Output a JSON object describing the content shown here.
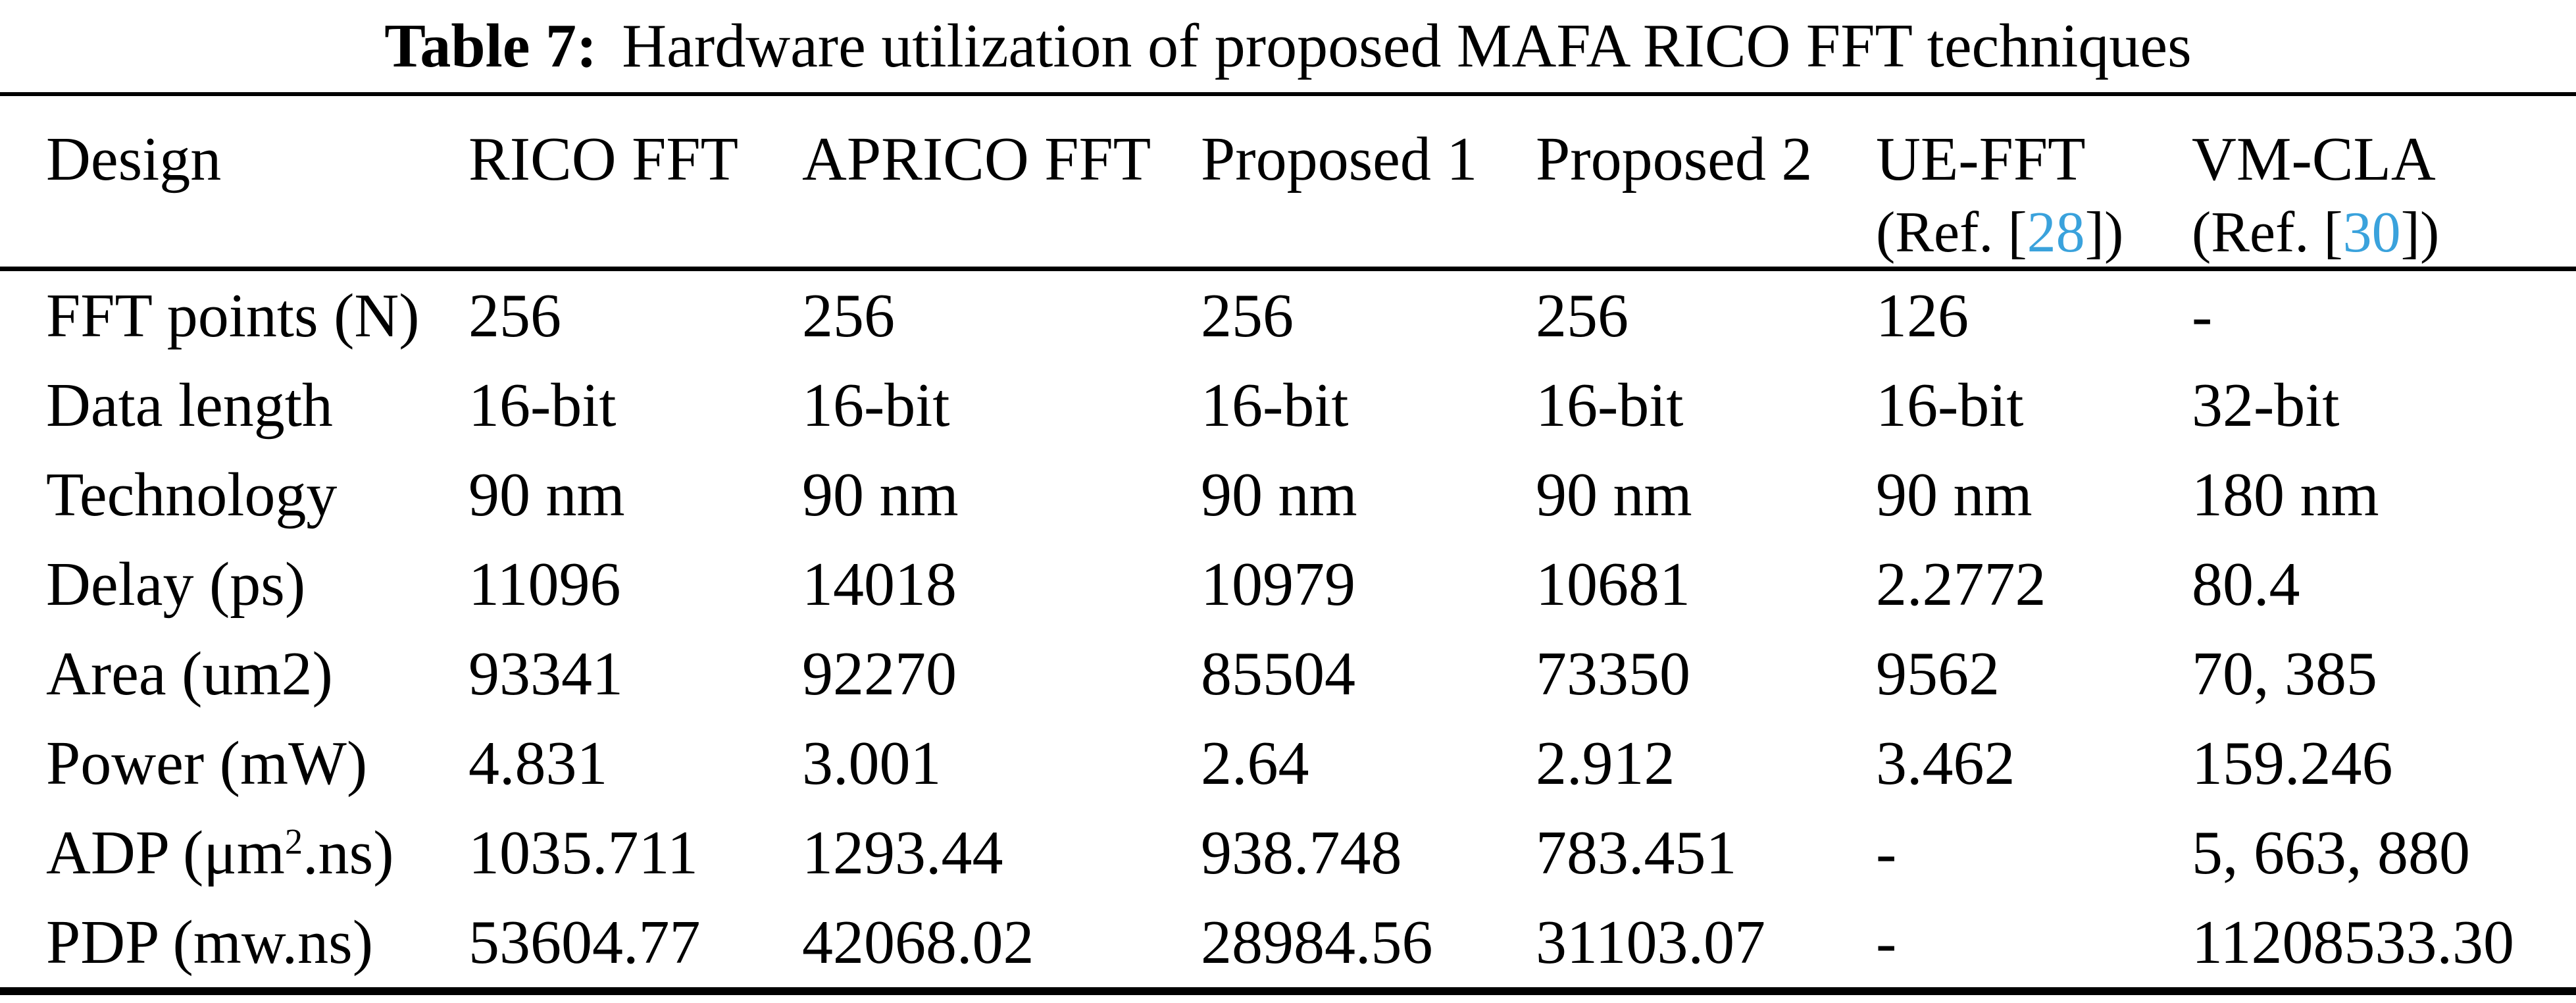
{
  "caption": {
    "label": "Table 7:",
    "text": "Hardware utilization of proposed MAFA RICO FFT techniques"
  },
  "colors": {
    "citation": "#3aa2dc",
    "text": "#000000",
    "background": "#ffffff"
  },
  "table": {
    "header": {
      "design": "Design",
      "columns": [
        {
          "line1": "RICO FFT"
        },
        {
          "line1": "APRICO FFT"
        },
        {
          "line1": "Proposed 1"
        },
        {
          "line1": "Proposed 2"
        },
        {
          "line1": "UE-FFT",
          "ref_pre": "(Ref. [",
          "ref_num": "28",
          "ref_post": "])"
        },
        {
          "line1": "VM-CLA",
          "ref_pre": "(Ref. [",
          "ref_num": "30",
          "ref_post": "])"
        }
      ]
    },
    "rows": [
      {
        "label_pre": "FFT points (N)",
        "values": [
          "256",
          "256",
          "256",
          "256",
          "126",
          "-"
        ]
      },
      {
        "label_pre": "Data length",
        "values": [
          "16-bit",
          "16-bit",
          "16-bit",
          "16-bit",
          "16-bit",
          "32-bit"
        ]
      },
      {
        "label_pre": "Technology",
        "values": [
          "90 nm",
          "90 nm",
          "90 nm",
          "90 nm",
          "90 nm",
          "180 nm"
        ]
      },
      {
        "label_pre": "Delay (ps)",
        "values": [
          "11096",
          "14018",
          "10979",
          "10681",
          "2.2772",
          "80.4"
        ]
      },
      {
        "label_pre": "Area (um2)",
        "values": [
          "93341",
          "92270",
          "85504",
          "73350",
          "9562",
          "70, 385"
        ]
      },
      {
        "label_pre": "Power (mW)",
        "values": [
          "4.831",
          "3.001",
          "2.64",
          "2.912",
          "3.462",
          "159.246"
        ]
      },
      {
        "label_pre": "ADP (μm",
        "label_sup": "2",
        "label_post": ".ns)",
        "values": [
          "1035.711",
          "1293.44",
          "938.748",
          "783.451",
          "-",
          "5, 663, 880"
        ]
      },
      {
        "label_pre": "PDP (mw.ns)",
        "values": [
          "53604.77",
          "42068.02",
          "28984.56",
          "31103.07",
          "-",
          "11208533.30"
        ]
      }
    ]
  }
}
